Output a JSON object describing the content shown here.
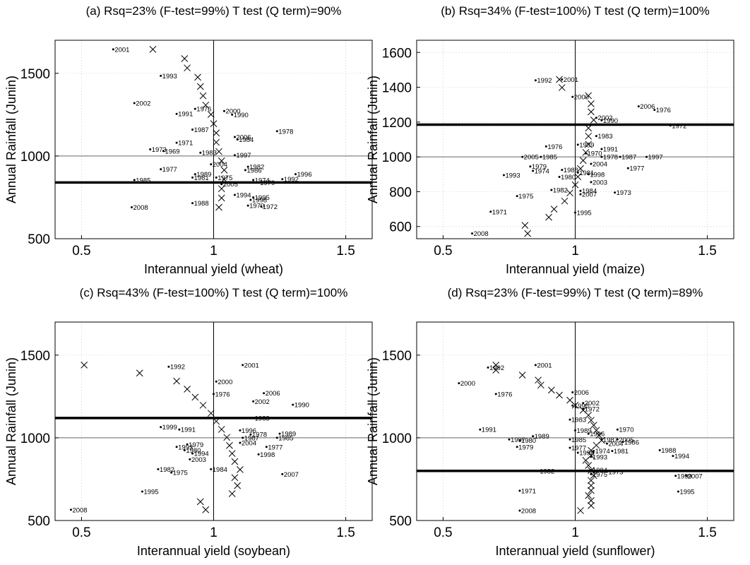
{
  "chart_data": [
    {
      "id": "a",
      "type": "scatter",
      "title": "(a) Rsq=23% (F-test=99%) T test (Q term)=90%",
      "xlabel": "Interannual yield (wheat)",
      "ylabel": "Annual Rainfall (Junin)",
      "xlim": [
        0.4,
        1.6
      ],
      "ylim": [
        500,
        1700
      ],
      "xticks": [
        0.5,
        1,
        1.5
      ],
      "yticks": [
        500,
        1000,
        1500
      ],
      "vline_x": 1.0,
      "mean_y": 1000,
      "threshold_y": 840,
      "points": [
        {
          "label": "2001",
          "x": 0.62,
          "y": 1645
        },
        {
          "label": "1993",
          "x": 0.8,
          "y": 1485
        },
        {
          "label": "2002",
          "x": 0.7,
          "y": 1320
        },
        {
          "label": "1976",
          "x": 0.93,
          "y": 1285
        },
        {
          "label": "1991",
          "x": 0.86,
          "y": 1255
        },
        {
          "label": "2000",
          "x": 1.04,
          "y": 1272
        },
        {
          "label": "1990",
          "x": 1.07,
          "y": 1250
        },
        {
          "label": "1987",
          "x": 0.92,
          "y": 1160
        },
        {
          "label": "1978",
          "x": 1.24,
          "y": 1150
        },
        {
          "label": "2006",
          "x": 1.08,
          "y": 1115
        },
        {
          "label": "1984",
          "x": 1.09,
          "y": 1100
        },
        {
          "label": "1971",
          "x": 0.86,
          "y": 1080
        },
        {
          "label": "1973",
          "x": 0.76,
          "y": 1040
        },
        {
          "label": "1969",
          "x": 0.81,
          "y": 1030
        },
        {
          "label": "1983",
          "x": 0.95,
          "y": 1020
        },
        {
          "label": "1997",
          "x": 1.08,
          "y": 1005
        },
        {
          "label": "2004",
          "x": 0.99,
          "y": 950
        },
        {
          "label": "1982",
          "x": 1.13,
          "y": 935
        },
        {
          "label": "1977",
          "x": 0.8,
          "y": 920
        },
        {
          "label": "1986",
          "x": 1.12,
          "y": 915
        },
        {
          "label": "1989",
          "x": 0.93,
          "y": 890
        },
        {
          "label": "1981",
          "x": 0.92,
          "y": 870
        },
        {
          "label": "1975",
          "x": 1.01,
          "y": 870
        },
        {
          "label": "1996",
          "x": 1.31,
          "y": 890
        },
        {
          "label": "1992",
          "x": 1.26,
          "y": 860
        },
        {
          "label": "1985",
          "x": 0.7,
          "y": 855
        },
        {
          "label": "1974",
          "x": 1.15,
          "y": 855
        },
        {
          "label": "1979",
          "x": 1.17,
          "y": 840
        },
        {
          "label": "2005",
          "x": 1.03,
          "y": 830
        },
        {
          "label": "1994",
          "x": 1.08,
          "y": 765
        },
        {
          "label": "1995",
          "x": 1.15,
          "y": 750
        },
        {
          "label": "1998",
          "x": 1.14,
          "y": 735
        },
        {
          "label": "1988",
          "x": 0.92,
          "y": 715
        },
        {
          "label": "1970",
          "x": 1.13,
          "y": 700
        },
        {
          "label": "1972",
          "x": 1.18,
          "y": 695
        },
        {
          "label": "2008",
          "x": 0.69,
          "y": 690
        }
      ],
      "fit_x": [
        0.77,
        0.89,
        0.9,
        0.94,
        0.95,
        0.96,
        0.97,
        0.99,
        1.0,
        1.01,
        1.01,
        1.02,
        1.03,
        1.04,
        1.04,
        1.03,
        1.03,
        1.02
      ]
    },
    {
      "id": "b",
      "type": "scatter",
      "title": "(b) Rsq=34% (F-test=100%) T test (Q term)=100%",
      "xlabel": "Interannual yield (maize)",
      "ylabel": "Annual Rainfall (Junin)",
      "xlim": [
        0.4,
        1.6
      ],
      "ylim": [
        530,
        1670
      ],
      "xticks": [
        0.5,
        1,
        1.5
      ],
      "yticks": [
        600,
        800,
        1000,
        1200,
        1400,
        1600
      ],
      "vline_x": 1.0,
      "mean_y": 1000,
      "threshold_y": 1185,
      "points": [
        {
          "label": "1992",
          "x": 0.85,
          "y": 1440
        },
        {
          "label": "2001",
          "x": 0.95,
          "y": 1445
        },
        {
          "label": "2000",
          "x": 0.99,
          "y": 1345
        },
        {
          "label": "2006",
          "x": 1.24,
          "y": 1290
        },
        {
          "label": "1976",
          "x": 1.3,
          "y": 1270
        },
        {
          "label": "2002",
          "x": 1.08,
          "y": 1225
        },
        {
          "label": "1990",
          "x": 1.1,
          "y": 1210
        },
        {
          "label": "1972",
          "x": 1.36,
          "y": 1180
        },
        {
          "label": "1983",
          "x": 1.08,
          "y": 1120
        },
        {
          "label": "1989",
          "x": 1.01,
          "y": 1070
        },
        {
          "label": "1976",
          "x": 0.89,
          "y": 1060
        },
        {
          "label": "1991",
          "x": 1.1,
          "y": 1045
        },
        {
          "label": "1970",
          "x": 1.04,
          "y": 1020
        },
        {
          "label": "1997",
          "x": 1.27,
          "y": 1000
        },
        {
          "label": "1987",
          "x": 1.17,
          "y": 1000
        },
        {
          "label": "2005",
          "x": 0.8,
          "y": 1000
        },
        {
          "label": "1985",
          "x": 0.87,
          "y": 1000
        },
        {
          "label": "1978",
          "x": 1.1,
          "y": 1000
        },
        {
          "label": "2004",
          "x": 1.06,
          "y": 960
        },
        {
          "label": "1977",
          "x": 1.2,
          "y": 935
        },
        {
          "label": "1979",
          "x": 0.83,
          "y": 945
        },
        {
          "label": "1988",
          "x": 0.95,
          "y": 925
        },
        {
          "label": "1974",
          "x": 0.84,
          "y": 920
        },
        {
          "label": "1981",
          "x": 1.01,
          "y": 910
        },
        {
          "label": "1998",
          "x": 1.05,
          "y": 900
        },
        {
          "label": "1993",
          "x": 0.73,
          "y": 895
        },
        {
          "label": "1980",
          "x": 0.94,
          "y": 885
        },
        {
          "label": "2003",
          "x": 1.06,
          "y": 855
        },
        {
          "label": "1982",
          "x": 0.91,
          "y": 810
        },
        {
          "label": "1984",
          "x": 1.02,
          "y": 805
        },
        {
          "label": "2007",
          "x": 1.02,
          "y": 785
        },
        {
          "label": "1973",
          "x": 1.15,
          "y": 795
        },
        {
          "label": "1975",
          "x": 0.78,
          "y": 775
        },
        {
          "label": "1971",
          "x": 0.68,
          "y": 685
        },
        {
          "label": "1995",
          "x": 1.0,
          "y": 680
        },
        {
          "label": "2008",
          "x": 0.61,
          "y": 560
        }
      ],
      "fit_x": [
        0.94,
        0.95,
        1.05,
        1.06,
        1.06,
        1.07,
        1.05,
        1.05,
        1.05,
        1.04,
        1.03,
        1.02,
        1.01,
        1.0,
        0.98,
        0.96,
        0.92,
        0.9,
        0.81,
        0.82
      ]
    },
    {
      "id": "c",
      "type": "scatter",
      "title": "(c) Rsq=43% (F-test=100%) T test (Q term)=100%",
      "xlabel": "Interannual yield (soybean)",
      "ylabel": "Annual Rainfall (Junin)",
      "xlim": [
        0.4,
        1.6
      ],
      "ylim": [
        500,
        1700
      ],
      "xticks": [
        0.5,
        1,
        1.5
      ],
      "yticks": [
        500,
        1000,
        1500
      ],
      "vline_x": 1.0,
      "mean_y": 1000,
      "threshold_y": 1120,
      "points": [
        {
          "label": "1992",
          "x": 0.83,
          "y": 1430
        },
        {
          "label": "2001",
          "x": 1.11,
          "y": 1440
        },
        {
          "label": "2000",
          "x": 1.01,
          "y": 1340
        },
        {
          "label": "1976",
          "x": 1.0,
          "y": 1265
        },
        {
          "label": "2006",
          "x": 1.19,
          "y": 1270
        },
        {
          "label": "2002",
          "x": 1.15,
          "y": 1220
        },
        {
          "label": "1990",
          "x": 1.3,
          "y": 1200
        },
        {
          "label": "1983",
          "x": 1.15,
          "y": 1120
        },
        {
          "label": "1999",
          "x": 0.8,
          "y": 1065
        },
        {
          "label": "1991",
          "x": 0.87,
          "y": 1050
        },
        {
          "label": "1996",
          "x": 1.1,
          "y": 1045
        },
        {
          "label": "1978",
          "x": 1.14,
          "y": 1020
        },
        {
          "label": "1989",
          "x": 1.25,
          "y": 1025
        },
        {
          "label": "1985",
          "x": 1.24,
          "y": 1000
        },
        {
          "label": "1987",
          "x": 1.11,
          "y": 1000
        },
        {
          "label": "2004",
          "x": 1.1,
          "y": 970
        },
        {
          "label": "1977",
          "x": 1.2,
          "y": 945
        },
        {
          "label": "1979",
          "x": 0.9,
          "y": 960
        },
        {
          "label": "1993",
          "x": 0.86,
          "y": 945
        },
        {
          "label": "1998",
          "x": 1.17,
          "y": 900
        },
        {
          "label": "1980",
          "x": 0.89,
          "y": 925
        },
        {
          "label": "1994",
          "x": 0.92,
          "y": 905
        },
        {
          "label": "2003",
          "x": 0.91,
          "y": 870
        },
        {
          "label": "1982",
          "x": 0.79,
          "y": 810
        },
        {
          "label": "1975",
          "x": 0.84,
          "y": 790
        },
        {
          "label": "1984",
          "x": 0.99,
          "y": 810
        },
        {
          "label": "2007",
          "x": 1.26,
          "y": 780
        },
        {
          "label": "1995",
          "x": 0.73,
          "y": 675
        },
        {
          "label": "2008",
          "x": 0.46,
          "y": 565
        }
      ],
      "fit_x": [
        0.51,
        0.72,
        0.86,
        0.9,
        0.93,
        0.96,
        0.99,
        1.01,
        1.03,
        1.05,
        1.06,
        1.07,
        1.08,
        1.1,
        1.08,
        1.09,
        1.07,
        0.95,
        0.97
      ]
    },
    {
      "id": "d",
      "type": "scatter",
      "title": "(d) Rsq=23% (F-test=99%) T test (Q term)=89%",
      "xlabel": "Interannual yield (sunflower)",
      "ylabel": "Annual Rainfall (Junin)",
      "xlim": [
        0.4,
        1.6
      ],
      "ylim": [
        500,
        1700
      ],
      "xticks": [
        0.5,
        1,
        1.5
      ],
      "yticks": [
        500,
        1000,
        1500
      ],
      "vline_x": 1.0,
      "mean_y": 1000,
      "threshold_y": 800,
      "points": [
        {
          "label": "1992",
          "x": 0.67,
          "y": 1425
        },
        {
          "label": "2001",
          "x": 0.85,
          "y": 1440
        },
        {
          "label": "2000",
          "x": 0.56,
          "y": 1330
        },
        {
          "label": "1976",
          "x": 0.7,
          "y": 1265
        },
        {
          "label": "2006",
          "x": 0.99,
          "y": 1275
        },
        {
          "label": "2002",
          "x": 1.03,
          "y": 1210
        },
        {
          "label": "1990",
          "x": 0.99,
          "y": 1195
        },
        {
          "label": "1972",
          "x": 1.03,
          "y": 1175
        },
        {
          "label": "1983",
          "x": 0.98,
          "y": 1110
        },
        {
          "label": "1970",
          "x": 1.16,
          "y": 1050
        },
        {
          "label": "1991",
          "x": 0.64,
          "y": 1050
        },
        {
          "label": "1989",
          "x": 1.0,
          "y": 1045
        },
        {
          "label": "1996",
          "x": 1.05,
          "y": 1025
        },
        {
          "label": "1989",
          "x": 0.84,
          "y": 1010
        },
        {
          "label": "1985",
          "x": 0.98,
          "y": 990
        },
        {
          "label": "1997",
          "x": 0.75,
          "y": 990
        },
        {
          "label": "2005",
          "x": 1.16,
          "y": 990
        },
        {
          "label": "1987",
          "x": 1.1,
          "y": 990
        },
        {
          "label": "1980",
          "x": 0.79,
          "y": 985
        },
        {
          "label": "2004",
          "x": 1.12,
          "y": 965
        },
        {
          "label": "1986",
          "x": 1.18,
          "y": 975
        },
        {
          "label": "1979",
          "x": 0.78,
          "y": 945
        },
        {
          "label": "1977",
          "x": 0.98,
          "y": 940
        },
        {
          "label": "1974",
          "x": 1.07,
          "y": 920
        },
        {
          "label": "1981",
          "x": 1.14,
          "y": 920
        },
        {
          "label": "1998",
          "x": 1.01,
          "y": 910
        },
        {
          "label": "1993",
          "x": 1.06,
          "y": 885
        },
        {
          "label": "1988",
          "x": 1.32,
          "y": 925
        },
        {
          "label": "1994",
          "x": 1.37,
          "y": 890
        },
        {
          "label": "1982",
          "x": 0.86,
          "y": 800
        },
        {
          "label": "1984",
          "x": 1.06,
          "y": 805
        },
        {
          "label": "1973",
          "x": 1.12,
          "y": 795
        },
        {
          "label": "1975",
          "x": 1.06,
          "y": 780
        },
        {
          "label": "1999",
          "x": 1.38,
          "y": 770
        },
        {
          "label": "2007",
          "x": 1.42,
          "y": 770
        },
        {
          "label": "1995",
          "x": 1.39,
          "y": 675
        },
        {
          "label": "1971",
          "x": 0.79,
          "y": 680
        },
        {
          "label": "2008",
          "x": 0.79,
          "y": 560
        }
      ],
      "fit_x": [
        0.7,
        0.7,
        0.8,
        0.86,
        0.87,
        0.91,
        0.94,
        0.98,
        1.0,
        1.03,
        1.05,
        1.06,
        1.07,
        1.08,
        1.09,
        1.1,
        1.08,
        1.06,
        1.06,
        1.04,
        1.05,
        1.06,
        1.07,
        1.06,
        1.06,
        1.06,
        1.05,
        1.06,
        1.06,
        1.02
      ]
    }
  ]
}
